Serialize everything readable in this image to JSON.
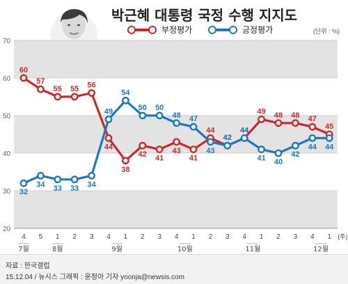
{
  "title": "박근혜 대통령 국정 수행 지지도",
  "unit": "(단위 : %)",
  "colors": {
    "negative": "#c62a2a",
    "positive": "#1f78b8",
    "band": "#e3e3e3",
    "axis": "#999999"
  },
  "chart_data": {
    "type": "line",
    "title": "박근혜 대통령 국정 수행 지지도",
    "ylim": [
      20,
      70
    ],
    "yticks": [
      20,
      30,
      40,
      50,
      60,
      70
    ],
    "x_label_suffix": "(주)",
    "weeks": [
      "4",
      "5",
      "1",
      "2",
      "3",
      "4",
      "1",
      "2",
      "3",
      "4",
      "1",
      "2",
      "3",
      "4",
      "1",
      "2",
      "3",
      "4",
      "1"
    ],
    "months": [
      {
        "label": "7월",
        "index": 0
      },
      {
        "label": "8월",
        "index": 2
      },
      {
        "label": "9월",
        "index": 5.5
      },
      {
        "label": "10월",
        "index": 9.5
      },
      {
        "label": "11월",
        "index": 13.5
      },
      {
        "label": "12월",
        "index": 17.5
      }
    ],
    "series": [
      {
        "name": "부정평가",
        "color": "#c62a2a",
        "values": [
          60,
          57,
          55,
          55,
          56,
          44,
          38,
          42,
          41,
          43,
          41,
          44,
          42,
          44,
          49,
          48,
          48,
          47,
          45
        ]
      },
      {
        "name": "긍정평가",
        "color": "#1f78b8",
        "values": [
          32,
          34,
          33,
          33,
          34,
          49,
          54,
          50,
          50,
          48,
          47,
          43,
          42,
          44,
          41,
          40,
          42,
          44,
          44
        ]
      }
    ],
    "grid": "alternating bands"
  },
  "footer": {
    "source": "자료 : 한국갤럽",
    "credit": "15.12.04 / 뉴시스 그래픽 : 윤정아 기자 yoonja@newsis.com"
  }
}
